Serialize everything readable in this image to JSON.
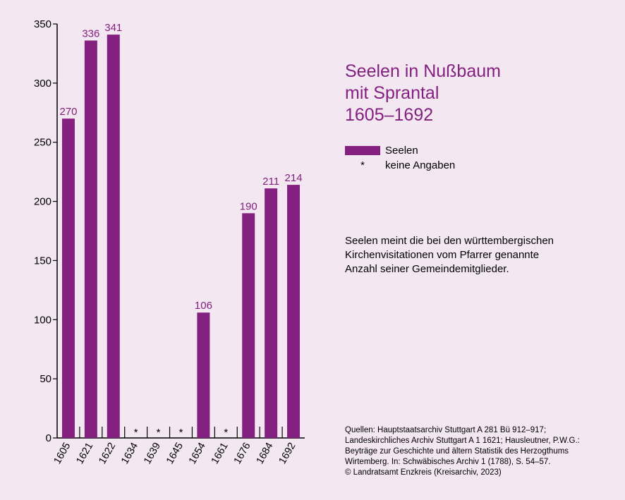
{
  "chart_data": {
    "type": "bar",
    "title_lines": [
      "Seelen in Nußbaum",
      "mit Sprantal",
      "1605–1692"
    ],
    "categories": [
      "1605",
      "1621",
      "1622",
      "1634",
      "1639",
      "1645",
      "1654",
      "1661",
      "1676",
      "1684",
      "1692"
    ],
    "series": [
      {
        "name": "Seelen",
        "values": [
          270,
          336,
          341,
          null,
          null,
          null,
          106,
          null,
          190,
          211,
          214
        ],
        "labels": [
          "270",
          "336",
          "341",
          "*",
          "*",
          "*",
          "106",
          "*",
          "190",
          "211",
          "214"
        ]
      }
    ],
    "y_ticks": [
      "0",
      "50",
      "100",
      "150",
      "200",
      "250",
      "300",
      "350"
    ],
    "ylim": [
      0,
      350
    ],
    "grid": false,
    "bar_color": "#84207f",
    "legend": {
      "position": "right",
      "entries": [
        {
          "symbol": "bar",
          "label": "Seelen"
        },
        {
          "symbol": "*",
          "label": "keine Angaben"
        }
      ]
    }
  },
  "note_lines": [
    "Seelen meint die bei den württembergischen",
    "Kirchenvisitationen vom Pfarrer genannte",
    "Anzahl seiner Gemeindemitglieder."
  ],
  "sources_lines": [
    "Quellen: Hauptstaatsarchiv Stuttgart A 281 Bü 912–917;",
    "Landeskirchliches Archiv Stuttgart A 1 1621; Hausleutner, P.W.G.:",
    "Beyträge zur Geschichte und ältern Statistik des Herzogthums",
    "Wirtemberg. In: Schwäbisches Archiv 1 (1788), S. 54–57.",
    "© Landratsamt Enzkreis (Kreisarchiv, 2023)"
  ],
  "colors": {
    "background": "#f3e8f2",
    "accent": "#84207f"
  }
}
